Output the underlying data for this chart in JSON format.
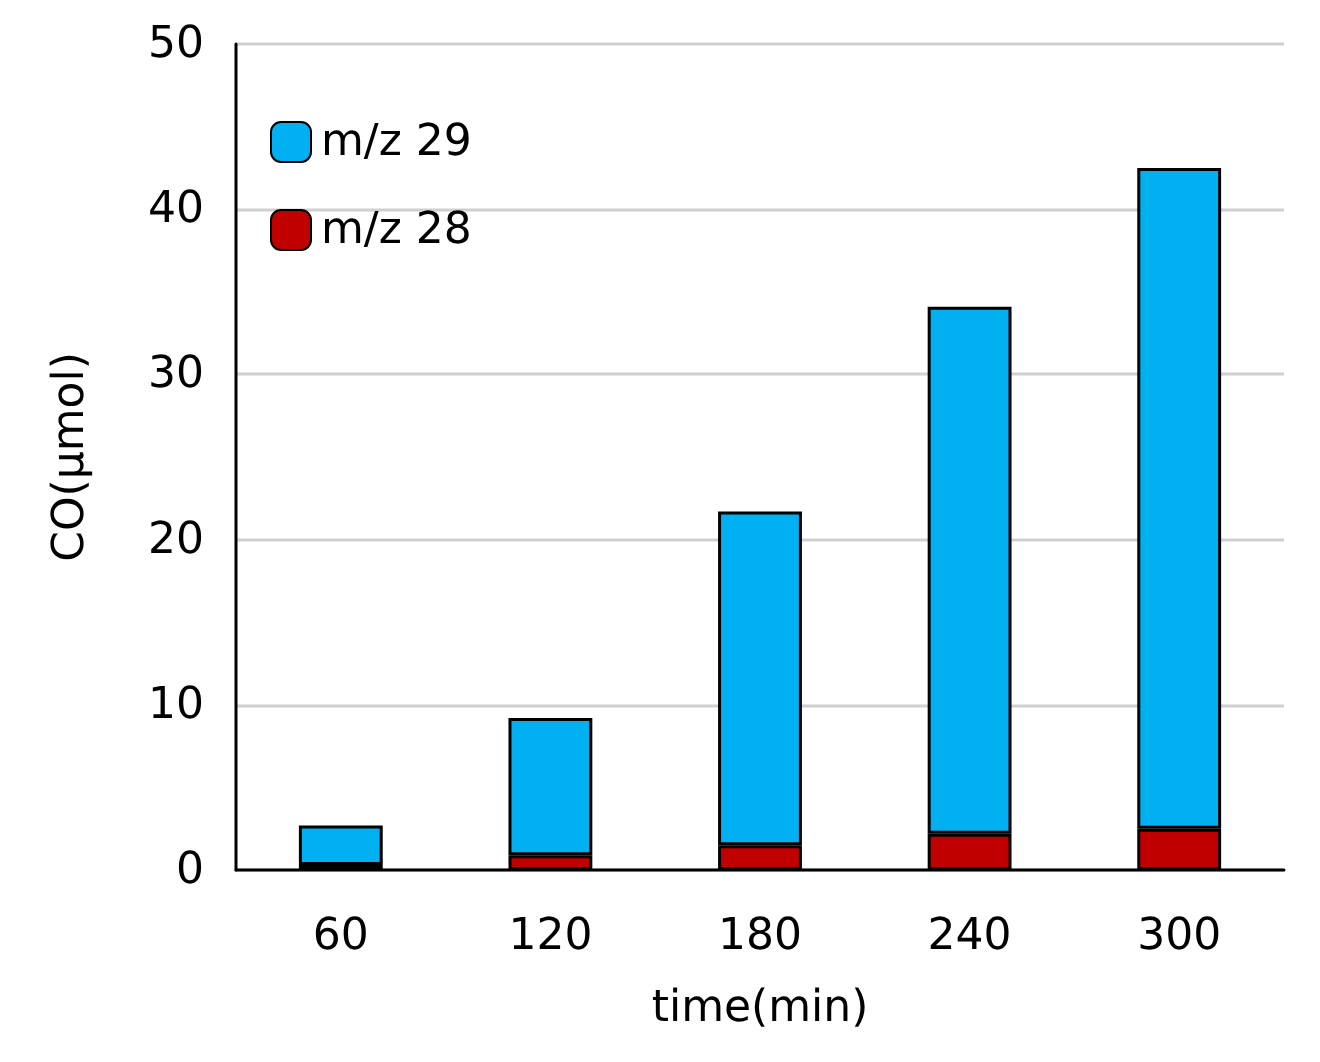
{
  "chart_data": {
    "type": "bar",
    "xlabel": "time(min)",
    "ylabel": "CO(μmol)",
    "categories": [
      "60",
      "120",
      "180",
      "240",
      "300"
    ],
    "series": [
      {
        "name": "m/z 28",
        "color": "#c00000",
        "values": [
          0.3,
          0.9,
          1.5,
          2.2,
          2.5
        ]
      },
      {
        "name": "m/z 29",
        "color": "#00b0f0",
        "values": [
          2.4,
          8.3,
          20.2,
          31.9,
          40.0
        ]
      }
    ],
    "stacked": true,
    "ylim": [
      0,
      50
    ],
    "yticks": [
      0,
      10,
      20,
      30,
      40,
      50
    ],
    "grid": "y",
    "legend": "top left"
  }
}
